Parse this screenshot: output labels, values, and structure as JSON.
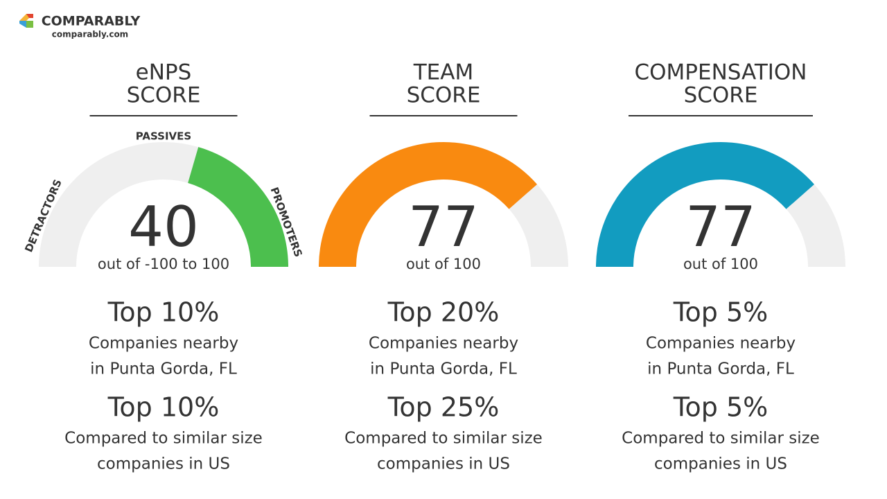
{
  "brand": {
    "name": "COMPARABLY",
    "url": "comparably.com"
  },
  "chart_data": [
    {
      "type": "gauge",
      "title": [
        "eNPS",
        "SCORE"
      ],
      "value": 40,
      "value_color": "#5a5a5a",
      "scale_label": "out of -100 to 100",
      "ylim": [
        -100,
        100
      ],
      "track_color": "#efefef",
      "bands": [
        {
          "label": "DETRACTORS"
        },
        {
          "label": "PASSIVES"
        },
        {
          "label": "PROMOTERS",
          "from": 18,
          "to": 100,
          "color": "#4cbf4e"
        }
      ],
      "rankings": [
        {
          "text": "Top 10%",
          "color": "#4cbf4e",
          "lines": [
            "Companies nearby",
            "in Punta Gorda, FL"
          ]
        },
        {
          "text": "Top 10%",
          "color": "#4cbf4e",
          "lines": [
            "Compared to similar size",
            "companies in US"
          ]
        }
      ]
    },
    {
      "type": "gauge",
      "title": [
        "TEAM",
        "SCORE"
      ],
      "value": 77,
      "color": "#f98a10",
      "value_color": "#f98a10",
      "scale_label": "out of 100",
      "ylim": [
        0,
        100
      ],
      "track_color": "#efefef",
      "rankings": [
        {
          "text": "Top 20%",
          "color": "#4cbf4e",
          "lines": [
            "Companies nearby",
            "in Punta Gorda, FL"
          ]
        },
        {
          "text": "Top 25%",
          "color": "#a6c94a",
          "lines": [
            "Compared to similar size",
            "companies in US"
          ]
        }
      ]
    },
    {
      "type": "gauge",
      "title": [
        "COMPENSATION",
        "SCORE"
      ],
      "value": 77,
      "color": "#129cc0",
      "value_color": "#129cc0",
      "scale_label": "out of 100",
      "ylim": [
        0,
        100
      ],
      "track_color": "#efefef",
      "rankings": [
        {
          "text": "Top 5%",
          "color": "#4cbf4e",
          "lines": [
            "Companies nearby",
            "in Punta Gorda, FL"
          ]
        },
        {
          "text": "Top 5%",
          "color": "#4cbf4e",
          "lines": [
            "Compared to similar size",
            "companies in US"
          ]
        }
      ]
    }
  ]
}
